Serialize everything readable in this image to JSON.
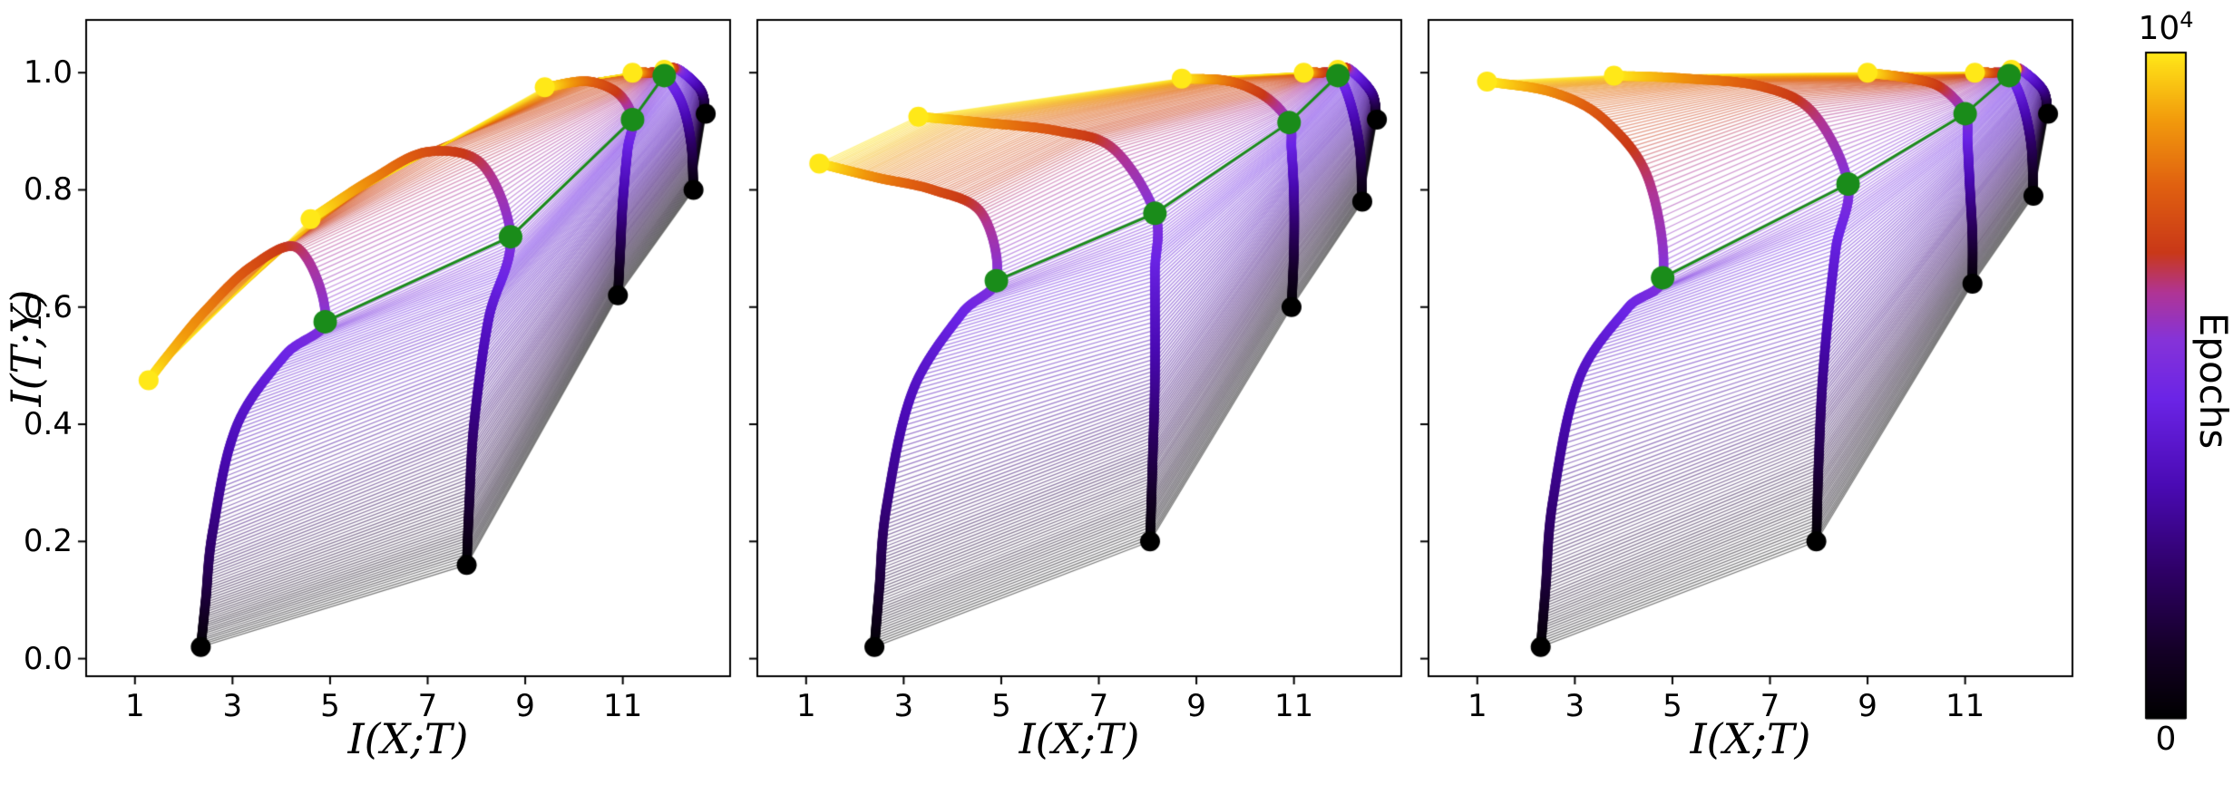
{
  "chart_data": {
    "type": "line",
    "note": "Information-plane trajectories of network layers during training; three subplots; line color encodes training epoch; green markers/line mark the phase-transition epoch of each layer.",
    "xlabel": "I(X;T)",
    "ylabel": "I(T;Y)",
    "xlim": [
      0,
      13.2
    ],
    "ylim": [
      -0.03,
      1.09
    ],
    "xticks": [
      1,
      3,
      5,
      7,
      9,
      11
    ],
    "yticks": [
      "0.0",
      "0.2",
      "0.4",
      "0.6",
      "0.8",
      "1.0"
    ],
    "grid": false,
    "legend": null,
    "colorbar": {
      "label": "Epochs",
      "top_tick_base": "10",
      "top_tick_exp": "4",
      "bottom_tick": "0",
      "scale": "log",
      "colormap_stops": [
        [
          0.0,
          "#000000"
        ],
        [
          0.1,
          "#140026"
        ],
        [
          0.22,
          "#2e0066"
        ],
        [
          0.35,
          "#4a0ab4"
        ],
        [
          0.48,
          "#6b24e6"
        ],
        [
          0.57,
          "#8633d8"
        ],
        [
          0.64,
          "#b03495"
        ],
        [
          0.7,
          "#c93818"
        ],
        [
          0.8,
          "#e06010"
        ],
        [
          0.9,
          "#f29b0c"
        ],
        [
          1.0,
          "#ffe818"
        ]
      ]
    },
    "green_marker_color": "#1a8c1a",
    "panels": [
      {
        "name": "panel-1",
        "green_points": [
          [
            4.9,
            0.575
          ],
          [
            8.7,
            0.72
          ],
          [
            11.2,
            0.92
          ],
          [
            11.85,
            0.995
          ]
        ],
        "layers": [
          {
            "keyframes": [
              [
                0,
                2.35,
                0.02
              ],
              [
                0.12,
                2.45,
                0.1
              ],
              [
                0.25,
                2.6,
                0.22
              ],
              [
                0.38,
                3.1,
                0.4
              ],
              [
                0.48,
                4.1,
                0.52
              ],
              [
                0.55,
                4.9,
                0.575
              ],
              [
                0.66,
                4.35,
                0.7
              ],
              [
                0.75,
                3.4,
                0.67
              ],
              [
                0.85,
                2.4,
                0.59
              ],
              [
                0.93,
                1.7,
                0.52
              ],
              [
                1,
                1.28,
                0.475
              ]
            ]
          },
          {
            "keyframes": [
              [
                0,
                7.8,
                0.16
              ],
              [
                0.12,
                7.85,
                0.26
              ],
              [
                0.25,
                7.95,
                0.4
              ],
              [
                0.4,
                8.25,
                0.58
              ],
              [
                0.55,
                8.7,
                0.72
              ],
              [
                0.66,
                8.1,
                0.845
              ],
              [
                0.75,
                7.0,
                0.865
              ],
              [
                0.85,
                5.9,
                0.82
              ],
              [
                1,
                4.6,
                0.75
              ]
            ]
          },
          {
            "keyframes": [
              [
                0,
                10.9,
                0.62
              ],
              [
                0.15,
                10.95,
                0.7
              ],
              [
                0.3,
                11.0,
                0.78
              ],
              [
                0.45,
                11.1,
                0.87
              ],
              [
                0.55,
                11.2,
                0.92
              ],
              [
                0.68,
                10.9,
                0.965
              ],
              [
                0.8,
                10.3,
                0.985
              ],
              [
                1,
                9.4,
                0.975
              ]
            ]
          },
          {
            "keyframes": [
              [
                0,
                12.45,
                0.8
              ],
              [
                0.2,
                12.4,
                0.88
              ],
              [
                0.4,
                12.2,
                0.95
              ],
              [
                0.55,
                11.85,
                0.995
              ],
              [
                0.75,
                11.5,
                1.0
              ],
              [
                1,
                11.2,
                1.0
              ]
            ]
          },
          {
            "keyframes": [
              [
                0,
                12.7,
                0.93
              ],
              [
                0.25,
                12.6,
                0.97
              ],
              [
                0.55,
                12.15,
                1.005
              ],
              [
                1,
                11.85,
                1.005
              ]
            ]
          }
        ]
      },
      {
        "name": "panel-2",
        "green_points": [
          [
            4.9,
            0.645
          ],
          [
            8.15,
            0.76
          ],
          [
            10.9,
            0.915
          ],
          [
            11.9,
            0.995
          ]
        ],
        "layers": [
          {
            "keyframes": [
              [
                0,
                2.4,
                0.02
              ],
              [
                0.12,
                2.5,
                0.12
              ],
              [
                0.25,
                2.65,
                0.26
              ],
              [
                0.38,
                3.2,
                0.46
              ],
              [
                0.48,
                4.2,
                0.59
              ],
              [
                0.55,
                4.9,
                0.645
              ],
              [
                0.65,
                4.6,
                0.76
              ],
              [
                0.75,
                3.6,
                0.8
              ],
              [
                0.85,
                2.5,
                0.82
              ],
              [
                1,
                1.27,
                0.845
              ]
            ]
          },
          {
            "keyframes": [
              [
                0,
                8.05,
                0.2
              ],
              [
                0.15,
                8.1,
                0.33
              ],
              [
                0.3,
                8.15,
                0.48
              ],
              [
                0.45,
                8.15,
                0.66
              ],
              [
                0.55,
                8.15,
                0.76
              ],
              [
                0.65,
                7.3,
                0.87
              ],
              [
                0.75,
                6.2,
                0.9
              ],
              [
                0.87,
                4.6,
                0.915
              ],
              [
                1,
                3.3,
                0.925
              ]
            ]
          },
          {
            "keyframes": [
              [
                0,
                10.95,
                0.6
              ],
              [
                0.15,
                11.0,
                0.7
              ],
              [
                0.3,
                11.0,
                0.79
              ],
              [
                0.45,
                10.95,
                0.87
              ],
              [
                0.55,
                10.9,
                0.915
              ],
              [
                0.68,
                10.4,
                0.96
              ],
              [
                0.8,
                9.7,
                0.985
              ],
              [
                1,
                8.7,
                0.99
              ]
            ]
          },
          {
            "keyframes": [
              [
                0,
                12.4,
                0.78
              ],
              [
                0.2,
                12.35,
                0.87
              ],
              [
                0.4,
                12.15,
                0.95
              ],
              [
                0.55,
                11.9,
                0.995
              ],
              [
                0.75,
                11.5,
                1.0
              ],
              [
                1,
                11.2,
                1.0
              ]
            ]
          },
          {
            "keyframes": [
              [
                0,
                12.7,
                0.92
              ],
              [
                0.25,
                12.6,
                0.965
              ],
              [
                0.55,
                12.15,
                1.005
              ],
              [
                1,
                11.9,
                1.005
              ]
            ]
          }
        ]
      },
      {
        "name": "panel-3",
        "green_points": [
          [
            4.8,
            0.65
          ],
          [
            8.6,
            0.81
          ],
          [
            11.0,
            0.93
          ],
          [
            11.9,
            0.995
          ]
        ],
        "layers": [
          {
            "keyframes": [
              [
                0,
                2.3,
                0.02
              ],
              [
                0.12,
                2.4,
                0.12
              ],
              [
                0.25,
                2.55,
                0.27
              ],
              [
                0.38,
                3.1,
                0.48
              ],
              [
                0.48,
                4.1,
                0.6
              ],
              [
                0.55,
                4.8,
                0.65
              ],
              [
                0.65,
                4.5,
                0.82
              ],
              [
                0.75,
                3.6,
                0.92
              ],
              [
                0.85,
                2.6,
                0.965
              ],
              [
                1,
                1.2,
                0.985
              ]
            ]
          },
          {
            "keyframes": [
              [
                0,
                7.95,
                0.2
              ],
              [
                0.15,
                8.0,
                0.34
              ],
              [
                0.3,
                8.1,
                0.5
              ],
              [
                0.45,
                8.35,
                0.7
              ],
              [
                0.55,
                8.6,
                0.81
              ],
              [
                0.65,
                7.9,
                0.93
              ],
              [
                0.75,
                6.9,
                0.975
              ],
              [
                0.87,
                5.3,
                0.99
              ],
              [
                1,
                3.8,
                0.995
              ]
            ]
          },
          {
            "keyframes": [
              [
                0,
                11.15,
                0.64
              ],
              [
                0.15,
                11.15,
                0.72
              ],
              [
                0.3,
                11.1,
                0.8
              ],
              [
                0.45,
                11.05,
                0.88
              ],
              [
                0.55,
                11.0,
                0.93
              ],
              [
                0.68,
                10.5,
                0.975
              ],
              [
                0.8,
                9.9,
                0.99
              ],
              [
                1,
                9.0,
                1.0
              ]
            ]
          },
          {
            "keyframes": [
              [
                0,
                12.4,
                0.79
              ],
              [
                0.2,
                12.35,
                0.88
              ],
              [
                0.4,
                12.15,
                0.955
              ],
              [
                0.55,
                11.9,
                0.995
              ],
              [
                0.75,
                11.5,
                1.0
              ],
              [
                1,
                11.2,
                1.0
              ]
            ]
          },
          {
            "keyframes": [
              [
                0,
                12.7,
                0.93
              ],
              [
                0.25,
                12.6,
                0.97
              ],
              [
                0.55,
                12.15,
                1.005
              ],
              [
                1,
                11.95,
                1.005
              ]
            ]
          }
        ]
      }
    ]
  }
}
